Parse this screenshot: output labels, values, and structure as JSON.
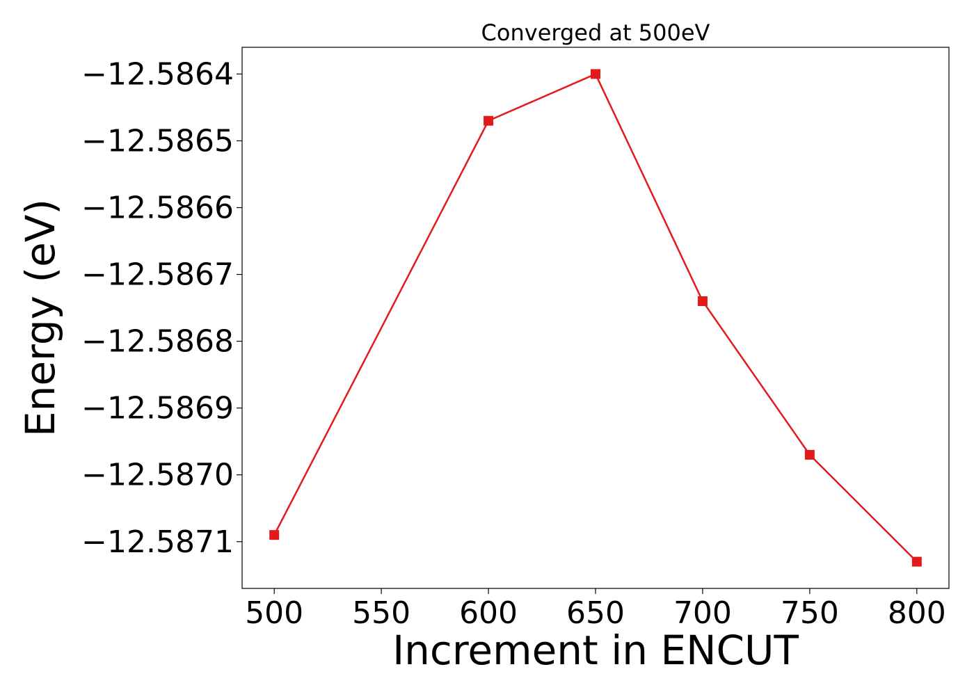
{
  "chart_data": {
    "type": "line",
    "title": "Converged at 500eV",
    "xlabel": "Increment in ENCUT",
    "ylabel": "Energy (eV)",
    "x": [
      500,
      600,
      650,
      700,
      750,
      800
    ],
    "series": [
      {
        "values": [
          -12.58709,
          -12.58647,
          -12.5864,
          -12.58674,
          -12.58697,
          -12.58713
        ],
        "color": "#e31a1c",
        "marker": "square"
      }
    ],
    "xlim": [
      485,
      815
    ],
    "ylim": [
      -12.58717,
      -12.58636
    ],
    "xticks": [
      500,
      550,
      600,
      650,
      700,
      750,
      800
    ],
    "xtick_labels": [
      "500",
      "550",
      "600",
      "650",
      "700",
      "750",
      "800"
    ],
    "yticks": [
      -12.5864,
      -12.5865,
      -12.5866,
      -12.5867,
      -12.5868,
      -12.5869,
      -12.587,
      -12.5871
    ],
    "ytick_labels": [
      "−12.5864",
      "−12.5865",
      "−12.5866",
      "−12.5867",
      "−12.5868",
      "−12.5869",
      "−12.5870",
      "−12.5871"
    ],
    "grid": false,
    "legend": "none"
  }
}
